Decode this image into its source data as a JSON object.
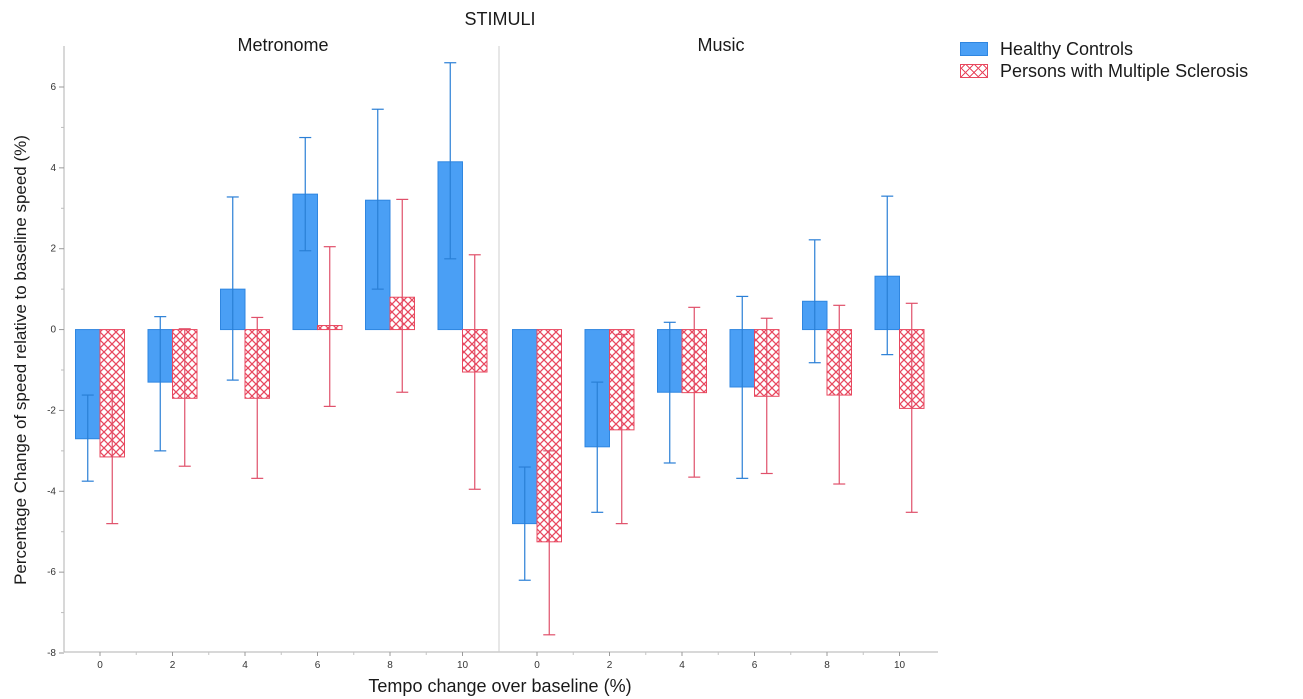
{
  "chart_data": {
    "type": "bar",
    "title": "STIMULI",
    "xlabel": "Tempo change over baseline (%)",
    "ylabel": "Percentage Change of speed relative to baseline speed (%)",
    "ylim": [
      -8,
      7
    ],
    "yticks": [
      -8,
      -6,
      -4,
      -2,
      0,
      2,
      4,
      6
    ],
    "grid": false,
    "legend_position": "top-right",
    "series_styles": [
      {
        "color": "#4a9ff5",
        "stroke": "#2f86e0",
        "error_color": "#2a7fd6",
        "pattern": "solid"
      },
      {
        "color": "#ffffff",
        "stroke": "#e8485f",
        "error_color": "#e0506a",
        "pattern": "crosshatch"
      }
    ],
    "panels": [
      {
        "name": "Metronome",
        "categories": [
          "0",
          "2",
          "4",
          "6",
          "8",
          "10"
        ],
        "series": [
          {
            "name": "Healthy Controls",
            "values": [
              -2.7,
              -1.3,
              1.0,
              3.35,
              3.2,
              4.15
            ],
            "error_low": [
              -3.75,
              -3.0,
              -1.25,
              1.95,
              1.0,
              1.75
            ],
            "error_high": [
              -1.62,
              0.32,
              3.28,
              4.75,
              5.45,
              6.6
            ]
          },
          {
            "name": "Persons with Multiple Sclerosis",
            "values": [
              -3.15,
              -1.7,
              -1.7,
              0.1,
              0.8,
              -1.05
            ],
            "error_low": [
              -4.8,
              -3.38,
              -3.68,
              -1.9,
              -1.55,
              -3.95
            ],
            "error_high": [
              -1.5,
              0.02,
              0.3,
              2.05,
              3.22,
              1.85
            ]
          }
        ]
      },
      {
        "name": "Music",
        "categories": [
          "0",
          "2",
          "4",
          "6",
          "8",
          "10"
        ],
        "series": [
          {
            "name": "Healthy Controls",
            "values": [
              -4.8,
              -2.9,
              -1.55,
              -1.42,
              0.7,
              1.32
            ],
            "error_low": [
              -6.2,
              -4.52,
              -3.3,
              -3.68,
              -0.82,
              -0.62
            ],
            "error_high": [
              -3.4,
              -1.3,
              0.18,
              0.82,
              2.22,
              3.3
            ]
          },
          {
            "name": "Persons with Multiple Sclerosis",
            "values": [
              -5.25,
              -2.48,
              -1.56,
              -1.65,
              -1.62,
              -1.95
            ],
            "error_low": [
              -7.55,
              -4.8,
              -3.65,
              -3.56,
              -3.82,
              -4.52
            ],
            "error_high": [
              -3.0,
              -0.12,
              0.55,
              0.28,
              0.6,
              0.65
            ]
          }
        ]
      }
    ],
    "legend": [
      "Healthy Controls",
      "Persons with Multiple Sclerosis"
    ]
  }
}
